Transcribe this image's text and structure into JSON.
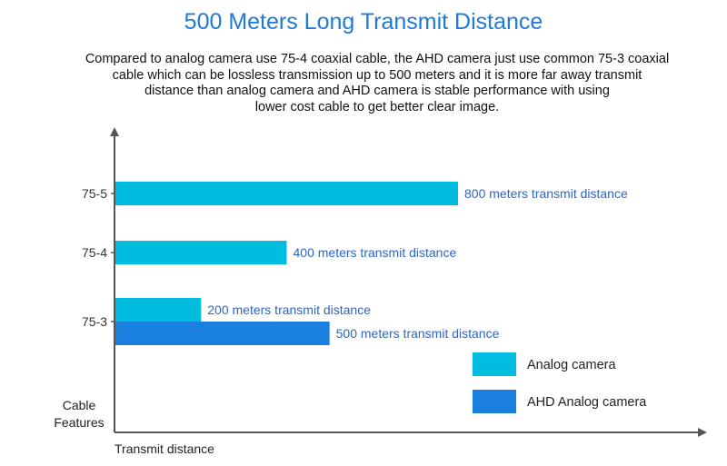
{
  "header": {
    "title": "500 Meters Long Transmit Distance",
    "description_lines": [
      "Compared to analog camera use 75-4 coaxial cable, the AHD camera just use common 75-3 coaxial",
      "cable which can be lossless transmission up to 500 meters and it is more far away transmit",
      "distance than analog camera and AHD camera is stable performance with using",
      "lower cost cable to get better clear image."
    ]
  },
  "chart_data": {
    "type": "bar",
    "orientation": "horizontal",
    "title": "500 Meters Long Transmit Distance",
    "xlabel": "Transmit distance",
    "ylabel_lines": [
      "Cable",
      "Features"
    ],
    "categories": [
      "75-5",
      "75-4",
      "75-3"
    ],
    "series": [
      {
        "name": "Analog camera",
        "color": "#00bde0",
        "values": [
          800,
          400,
          200
        ],
        "labels": [
          "800 meters transmit distance",
          "400 meters transmit distance",
          "200 meters transmit distance"
        ]
      },
      {
        "name": "AHD Analog camera",
        "color": "#1a80e0",
        "values": [
          null,
          null,
          500
        ],
        "labels": [
          null,
          null,
          "500 meters transmit distance"
        ]
      }
    ],
    "label_color": "#2b66c9",
    "xlim": [
      0,
      1200
    ],
    "grid": false,
    "legend_position": "bottom-right"
  }
}
